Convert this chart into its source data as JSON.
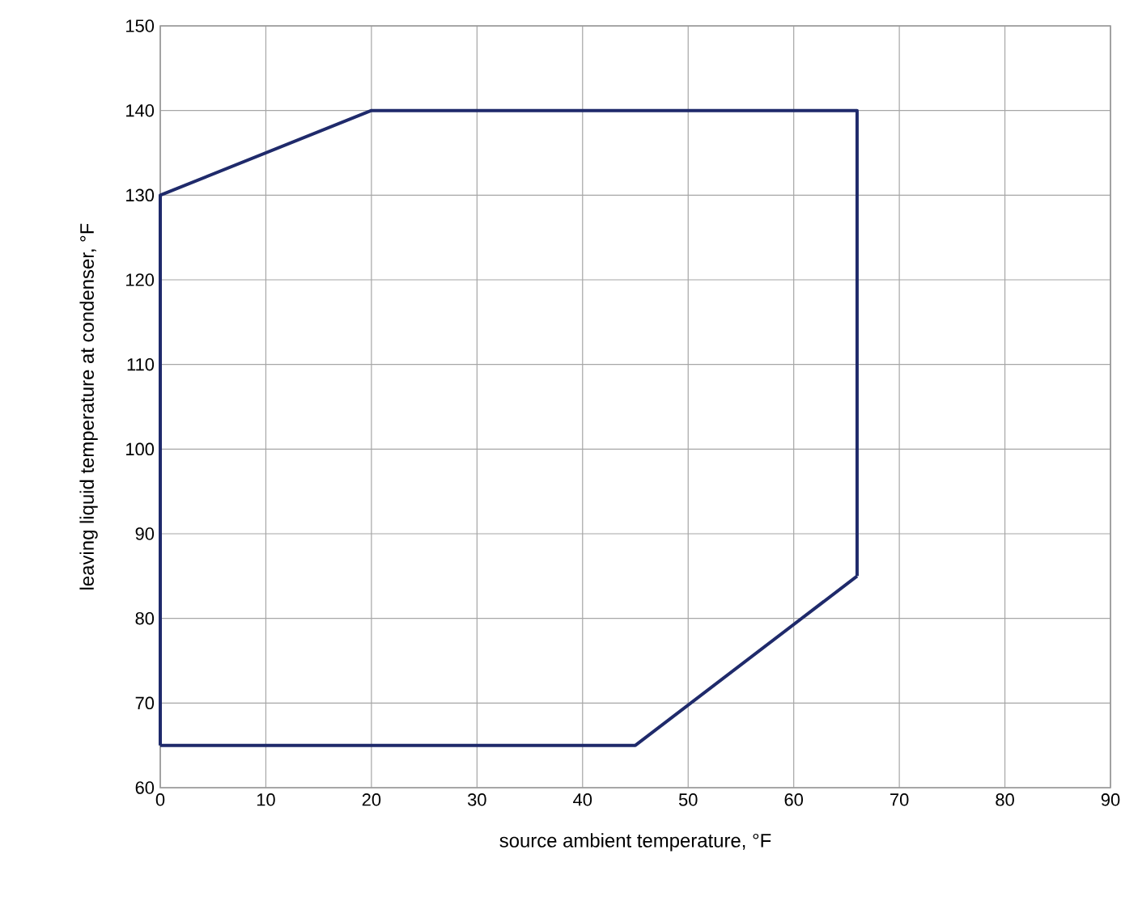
{
  "chart_data": {
    "type": "line",
    "xlabel": "source ambient temperature, °F",
    "ylabel": "leaving liquid  temperature at condenser, °F",
    "series": [
      {
        "x": [
          0,
          0,
          20,
          66,
          66
        ],
        "values": [
          65,
          130,
          140,
          140,
          85
        ],
        "color": "#1f2a6b"
      },
      {
        "x": [
          0,
          45,
          66
        ],
        "values": [
          65,
          65,
          85
        ],
        "color": "#1f2a6b"
      }
    ],
    "xlim": [
      0,
      90
    ],
    "ylim": [
      60,
      150
    ],
    "xticks": [
      0,
      10,
      20,
      30,
      40,
      50,
      60,
      70,
      80,
      90
    ],
    "yticks": [
      60,
      70,
      80,
      90,
      100,
      110,
      120,
      130,
      140,
      150
    ],
    "grid": true
  }
}
